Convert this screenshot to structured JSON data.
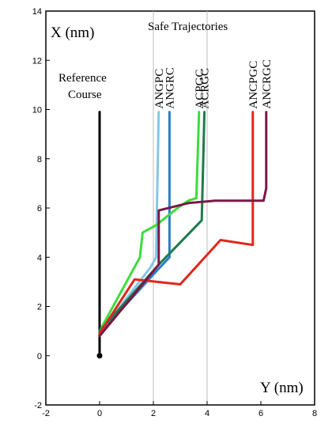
{
  "chart_data": {
    "type": "line",
    "title": "",
    "xlabel": "Y (nm)",
    "ylabel": "X (nm)",
    "xlim": [
      -2,
      8
    ],
    "ylim": [
      -2,
      14
    ],
    "x_ticks": [
      -2,
      0,
      2,
      4,
      6,
      8
    ],
    "y_ticks": [
      -2,
      0,
      2,
      4,
      6,
      8,
      10,
      12,
      14
    ],
    "grid": "vertical gridlines at x = 2 and 4",
    "legend_title": "Safe Trajectories",
    "annotations": [
      {
        "text": "Reference",
        "x": 0,
        "y": 11.5
      },
      {
        "text": "Course",
        "x": 0,
        "y": 10.7
      }
    ],
    "start_point": {
      "x": 0,
      "y": 0
    },
    "series": [
      {
        "name": "Reference Course",
        "color": "#000000",
        "labeled": false,
        "points": [
          [
            0,
            0
          ],
          [
            0,
            9.9
          ]
        ]
      },
      {
        "name": "ANGPC",
        "color": "#86c6e6",
        "points": [
          [
            0,
            0.9
          ],
          [
            1.9,
            3.6
          ],
          [
            2.1,
            4.0
          ],
          [
            2.2,
            9.9
          ]
        ]
      },
      {
        "name": "ANGRC",
        "color": "#2a7fc6",
        "points": [
          [
            0,
            0.9
          ],
          [
            2.0,
            3.3
          ],
          [
            2.6,
            4.0
          ],
          [
            2.6,
            9.9
          ]
        ]
      },
      {
        "name": "ACPGC",
        "color": "#3ddc3d",
        "points": [
          [
            0,
            1.0
          ],
          [
            1.5,
            4.0
          ],
          [
            1.6,
            5.0
          ],
          [
            2.1,
            5.3
          ],
          [
            2.9,
            6.0
          ],
          [
            3.3,
            6.3
          ],
          [
            3.6,
            6.4
          ],
          [
            3.7,
            9.9
          ]
        ]
      },
      {
        "name": "ACRGC",
        "color": "#1f7a4c",
        "points": [
          [
            0,
            1.0
          ],
          [
            2.2,
            3.7
          ],
          [
            3.8,
            5.5
          ],
          [
            3.9,
            9.9
          ]
        ]
      },
      {
        "name": "ANCPGC",
        "color": "#e1261c",
        "points": [
          [
            0,
            0.9
          ],
          [
            1.3,
            3.1
          ],
          [
            3.0,
            2.9
          ],
          [
            4.5,
            4.7
          ],
          [
            5.7,
            4.5
          ],
          [
            5.7,
            9.9
          ]
        ]
      },
      {
        "name": "ANCRGC",
        "color": "#7a1846",
        "points": [
          [
            0,
            0.8
          ],
          [
            2.2,
            3.7
          ],
          [
            2.2,
            5.9
          ],
          [
            3.3,
            6.2
          ],
          [
            4.3,
            6.3
          ],
          [
            6.1,
            6.3
          ],
          [
            6.2,
            6.8
          ],
          [
            6.2,
            9.9
          ]
        ]
      }
    ]
  }
}
